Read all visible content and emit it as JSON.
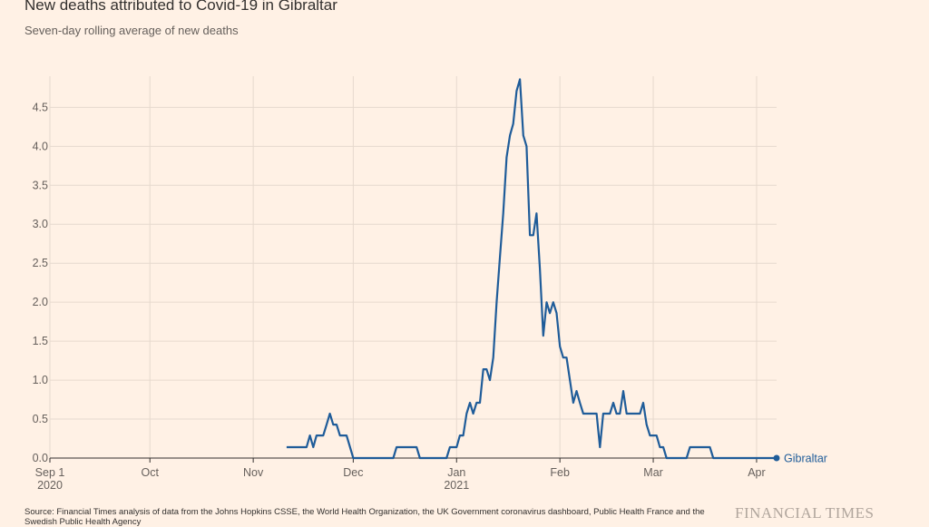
{
  "title": "New deaths attributed to Covid-19 in Gibraltar",
  "subtitle": "Seven-day rolling average of new deaths",
  "source": "Source: Financial Times analysis of data from the Johns Hopkins CSSE, the World Health Organization, the UK Government coronavirus dashboard, Public Health France and the Swedish Public Health Agency",
  "brand": "FINANCIAL TIMES",
  "colors": {
    "line": "#1f5c99",
    "grid": "#e6d9ce",
    "axis": "#33302e",
    "text": "#66605c"
  },
  "chart_data": {
    "type": "line",
    "title": "New deaths attributed to Covid-19 in Gibraltar",
    "subtitle": "Seven-day rolling average of new deaths",
    "ylim": [
      0,
      4.9
    ],
    "yticks": [
      "0.0",
      "0.5",
      "1.0",
      "1.5",
      "2.0",
      "2.5",
      "3.0",
      "3.5",
      "4.0",
      "4.5"
    ],
    "xlim": [
      "2020-09-01",
      "2021-04-07"
    ],
    "xticks": [
      {
        "date": "2020-09-01",
        "label": "Sep 1",
        "sublabel": "2020"
      },
      {
        "date": "2020-10-01",
        "label": "Oct",
        "sublabel": ""
      },
      {
        "date": "2020-11-01",
        "label": "Nov",
        "sublabel": ""
      },
      {
        "date": "2020-12-01",
        "label": "Dec",
        "sublabel": ""
      },
      {
        "date": "2021-01-01",
        "label": "Jan",
        "sublabel": "2021"
      },
      {
        "date": "2021-02-01",
        "label": "Feb",
        "sublabel": ""
      },
      {
        "date": "2021-03-01",
        "label": "Mar",
        "sublabel": ""
      },
      {
        "date": "2021-04-01",
        "label": "Apr",
        "sublabel": ""
      }
    ],
    "grid": true,
    "series": [
      {
        "name": "Gibraltar",
        "points": [
          [
            "2020-11-11",
            0.14
          ],
          [
            "2020-11-17",
            0.14
          ],
          [
            "2020-11-18",
            0.29
          ],
          [
            "2020-11-19",
            0.14
          ],
          [
            "2020-11-20",
            0.29
          ],
          [
            "2020-11-22",
            0.29
          ],
          [
            "2020-11-23",
            0.43
          ],
          [
            "2020-11-24",
            0.57
          ],
          [
            "2020-11-25",
            0.43
          ],
          [
            "2020-11-26",
            0.43
          ],
          [
            "2020-11-27",
            0.29
          ],
          [
            "2020-11-29",
            0.29
          ],
          [
            "2020-12-01",
            0.0
          ],
          [
            "2020-12-13",
            0.0
          ],
          [
            "2020-12-14",
            0.14
          ],
          [
            "2020-12-20",
            0.14
          ],
          [
            "2020-12-21",
            0.0
          ],
          [
            "2020-12-29",
            0.0
          ],
          [
            "2020-12-30",
            0.14
          ],
          [
            "2021-01-01",
            0.14
          ],
          [
            "2021-01-02",
            0.29
          ],
          [
            "2021-01-03",
            0.29
          ],
          [
            "2021-01-04",
            0.57
          ],
          [
            "2021-01-05",
            0.71
          ],
          [
            "2021-01-06",
            0.57
          ],
          [
            "2021-01-07",
            0.71
          ],
          [
            "2021-01-08",
            0.71
          ],
          [
            "2021-01-09",
            1.14
          ],
          [
            "2021-01-10",
            1.14
          ],
          [
            "2021-01-11",
            1.0
          ],
          [
            "2021-01-12",
            1.29
          ],
          [
            "2021-01-13",
            2.0
          ],
          [
            "2021-01-14",
            2.57
          ],
          [
            "2021-01-15",
            3.14
          ],
          [
            "2021-01-16",
            3.86
          ],
          [
            "2021-01-17",
            4.14
          ],
          [
            "2021-01-18",
            4.29
          ],
          [
            "2021-01-19",
            4.71
          ],
          [
            "2021-01-20",
            4.86
          ],
          [
            "2021-01-21",
            4.14
          ],
          [
            "2021-01-22",
            4.0
          ],
          [
            "2021-01-23",
            2.86
          ],
          [
            "2021-01-24",
            2.86
          ],
          [
            "2021-01-25",
            3.14
          ],
          [
            "2021-01-26",
            2.43
          ],
          [
            "2021-01-27",
            1.57
          ],
          [
            "2021-01-28",
            2.0
          ],
          [
            "2021-01-29",
            1.86
          ],
          [
            "2021-01-30",
            2.0
          ],
          [
            "2021-01-31",
            1.86
          ],
          [
            "2021-02-01",
            1.43
          ],
          [
            "2021-02-02",
            1.29
          ],
          [
            "2021-02-03",
            1.29
          ],
          [
            "2021-02-04",
            1.0
          ],
          [
            "2021-02-05",
            0.71
          ],
          [
            "2021-02-06",
            0.86
          ],
          [
            "2021-02-07",
            0.71
          ],
          [
            "2021-02-08",
            0.57
          ],
          [
            "2021-02-12",
            0.57
          ],
          [
            "2021-02-13",
            0.14
          ],
          [
            "2021-02-14",
            0.57
          ],
          [
            "2021-02-16",
            0.57
          ],
          [
            "2021-02-17",
            0.71
          ],
          [
            "2021-02-18",
            0.57
          ],
          [
            "2021-02-19",
            0.57
          ],
          [
            "2021-02-20",
            0.86
          ],
          [
            "2021-02-21",
            0.57
          ],
          [
            "2021-02-25",
            0.57
          ],
          [
            "2021-02-26",
            0.71
          ],
          [
            "2021-02-27",
            0.43
          ],
          [
            "2021-02-28",
            0.29
          ],
          [
            "2021-03-02",
            0.29
          ],
          [
            "2021-03-03",
            0.14
          ],
          [
            "2021-03-04",
            0.14
          ],
          [
            "2021-03-05",
            0.0
          ],
          [
            "2021-03-11",
            0.0
          ],
          [
            "2021-03-12",
            0.14
          ],
          [
            "2021-03-18",
            0.14
          ],
          [
            "2021-03-19",
            0.0
          ],
          [
            "2021-04-07",
            0.0
          ]
        ]
      }
    ]
  }
}
